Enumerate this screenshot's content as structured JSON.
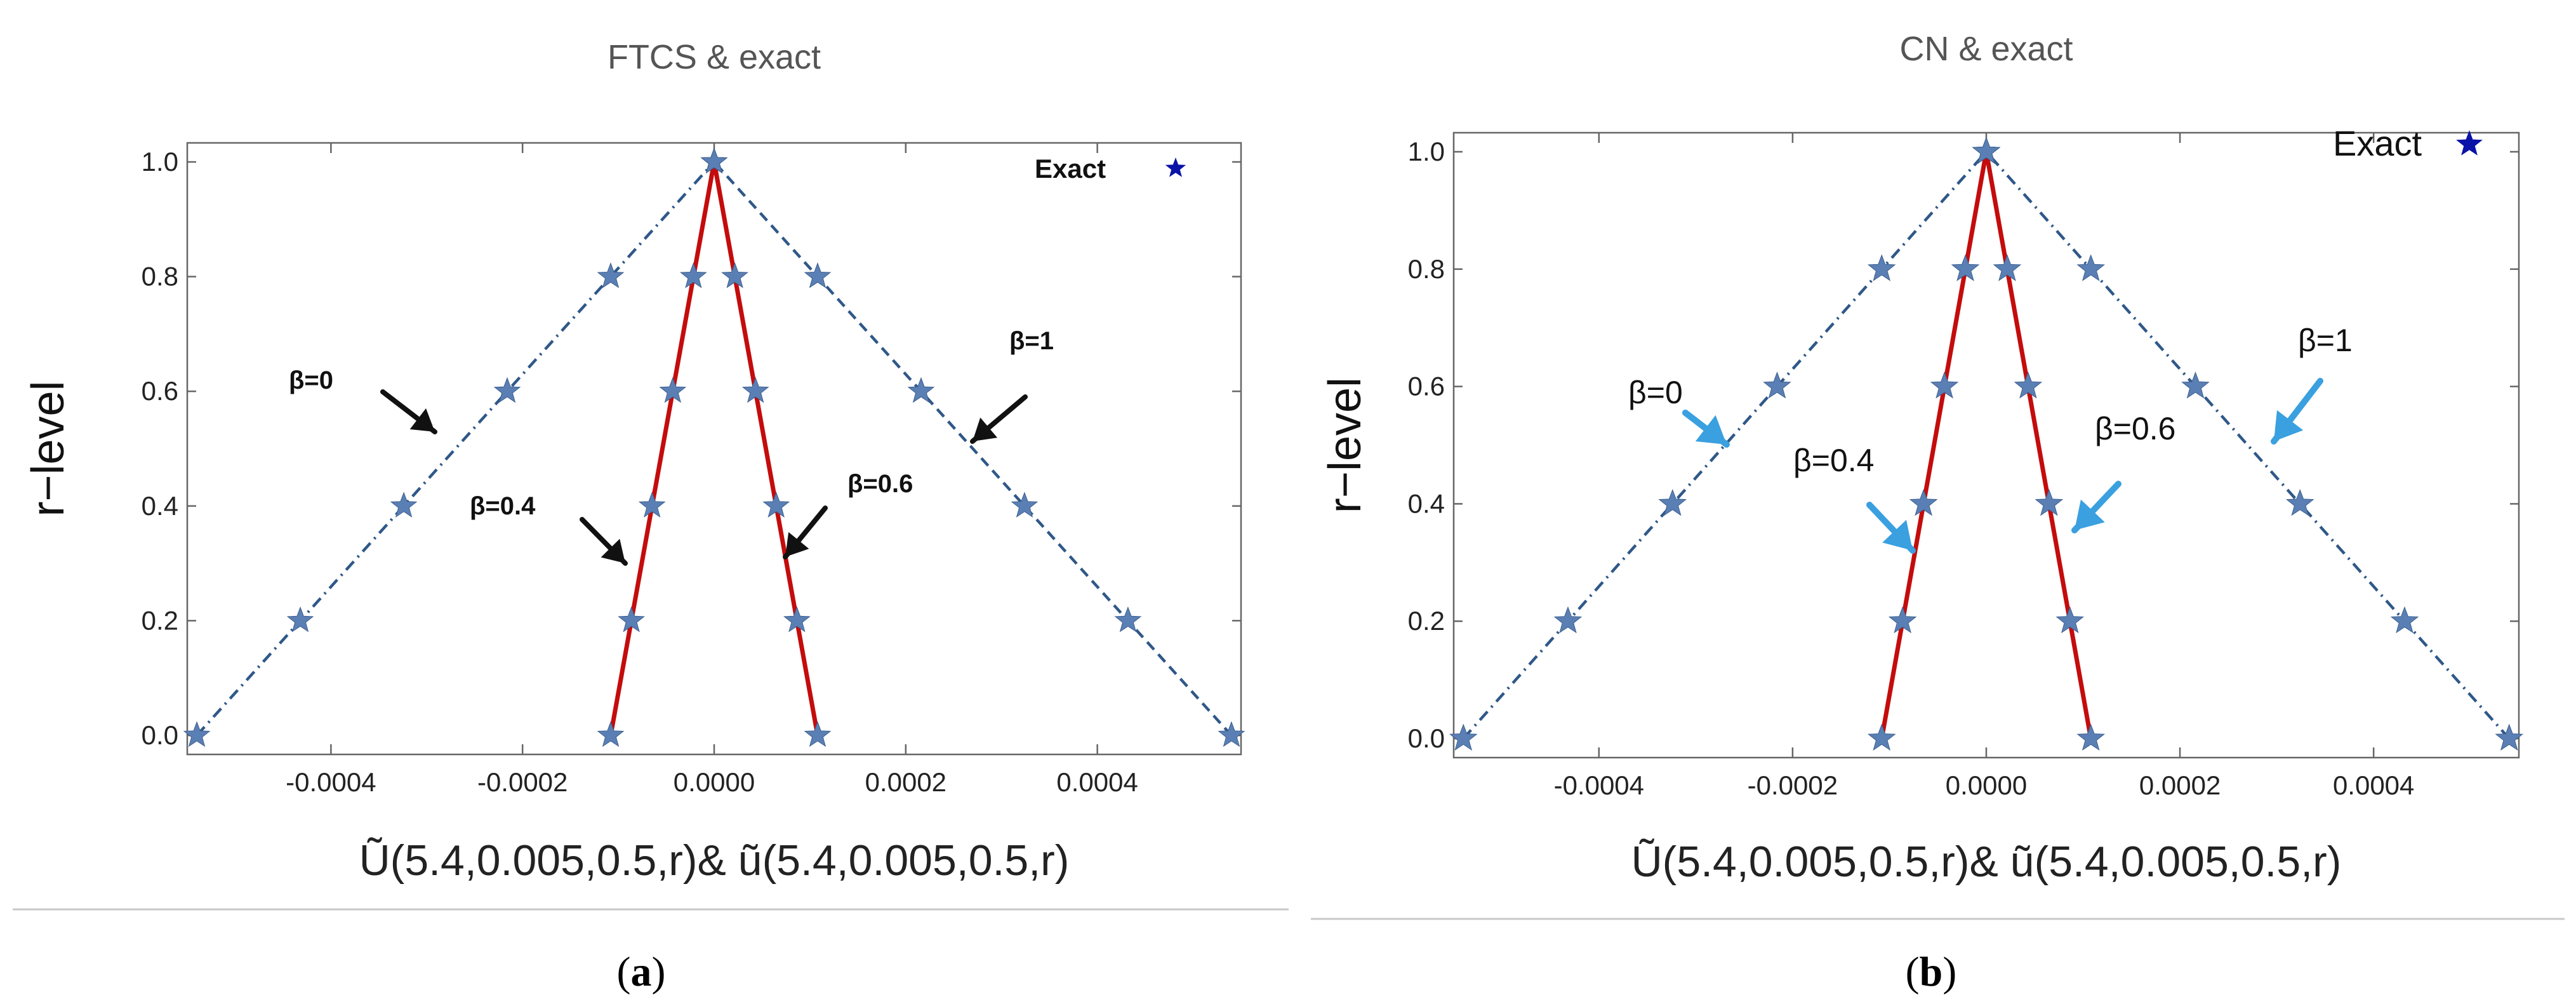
{
  "chart_data": [
    {
      "panel": "a",
      "type": "line",
      "title": "FTCS & exact",
      "ylabel": "r−level",
      "xlabel": "Ũ(5.4,0.005,0.5,r)& ũ(5.4,0.005,0.5,r)",
      "caption_letter": "a",
      "xlim": [
        -0.00055,
        0.00055
      ],
      "ylim": [
        0,
        1.0
      ],
      "xticks": [
        -0.0004,
        -0.0002,
        0.0,
        0.0002,
        0.0004
      ],
      "xtick_labels": [
        "-0.0004",
        "-0.0002",
        "0.0000",
        "0.0002",
        "0.0004"
      ],
      "yticks": [
        0.0,
        0.2,
        0.4,
        0.6,
        0.8,
        1.0
      ],
      "ytick_labels": [
        "0.0",
        "0.2",
        "0.4",
        "0.6",
        "0.8",
        "1.0"
      ],
      "legend": {
        "label": "Exact",
        "position": "top-right",
        "color": "#0a12a8"
      },
      "series": [
        {
          "name": "β=0",
          "style": "dashdot",
          "color": "#2f5888",
          "x": [
            -0.00054,
            -0.000432,
            -0.000324,
            -0.000216,
            -0.000108,
            0.0
          ],
          "y": [
            0.0,
            0.2,
            0.4,
            0.6,
            0.8,
            1.0
          ]
        },
        {
          "name": "β=1",
          "style": "dashed",
          "color": "#2f5888",
          "x": [
            0.00054,
            0.000432,
            0.000324,
            0.000216,
            0.000108,
            0.0
          ],
          "y": [
            0.0,
            0.2,
            0.4,
            0.6,
            0.8,
            1.0
          ]
        },
        {
          "name": "β=0.4",
          "style": "solid",
          "color": "#c40c0c",
          "x": [
            -0.000108,
            -8.64e-05,
            -6.48e-05,
            -4.32e-05,
            -2.16e-05,
            0.0
          ],
          "y": [
            0.0,
            0.2,
            0.4,
            0.6,
            0.8,
            1.0
          ]
        },
        {
          "name": "β=0.6",
          "style": "solid",
          "color": "#c40c0c",
          "x": [
            0.000108,
            8.64e-05,
            6.48e-05,
            4.32e-05,
            2.16e-05,
            0.0
          ],
          "y": [
            0.0,
            0.2,
            0.4,
            0.6,
            0.8,
            1.0
          ]
        }
      ],
      "exact_markers": {
        "marker": "star",
        "color": "#5a7fb4"
      },
      "annotations": [
        {
          "text": "β=0",
          "arrow_color": "#111111",
          "points_to": [
            -0.00028,
            0.48
          ]
        },
        {
          "text": "β=1",
          "arrow_color": "#111111",
          "points_to": [
            0.00028,
            0.46
          ]
        },
        {
          "text": "β=0.4",
          "arrow_color": "#111111",
          "points_to": [
            -8e-05,
            0.26
          ]
        },
        {
          "text": "β=0.6",
          "arrow_color": "#111111",
          "points_to": [
            8e-05,
            0.28
          ]
        }
      ]
    },
    {
      "panel": "b",
      "type": "line",
      "title": "CN & exact",
      "ylabel": "r−level",
      "xlabel": "Ũ(5.4,0.005,0.5,r)& ũ(5.4,0.005,0.5,r)",
      "caption_letter": "b",
      "xlim": [
        -0.00055,
        0.00055
      ],
      "ylim": [
        0,
        1.0
      ],
      "xticks": [
        -0.0004,
        -0.0002,
        0.0,
        0.0002,
        0.0004
      ],
      "xtick_labels": [
        "-0.0004",
        "-0.0002",
        "0.0000",
        "0.0002",
        "0.0004"
      ],
      "yticks": [
        0.0,
        0.2,
        0.4,
        0.6,
        0.8,
        1.0
      ],
      "ytick_labels": [
        "0.0",
        "0.2",
        "0.4",
        "0.6",
        "0.8",
        "1.0"
      ],
      "legend": {
        "label": "Exact",
        "position": "top-right",
        "color": "#0a12a8"
      },
      "series": [
        {
          "name": "β=0",
          "style": "dashdot",
          "color": "#2f5888",
          "x": [
            -0.00054,
            -0.000432,
            -0.000324,
            -0.000216,
            -0.000108,
            0.0
          ],
          "y": [
            0.0,
            0.2,
            0.4,
            0.6,
            0.8,
            1.0
          ]
        },
        {
          "name": "β=1",
          "style": "dashdot",
          "color": "#2f5888",
          "x": [
            0.00054,
            0.000432,
            0.000324,
            0.000216,
            0.000108,
            0.0
          ],
          "y": [
            0.0,
            0.2,
            0.4,
            0.6,
            0.8,
            1.0
          ]
        },
        {
          "name": "β=0.4",
          "style": "solid",
          "color": "#c40c0c",
          "x": [
            -0.000108,
            -8.64e-05,
            -6.48e-05,
            -4.32e-05,
            -2.16e-05,
            0.0
          ],
          "y": [
            0.0,
            0.2,
            0.4,
            0.6,
            0.8,
            1.0
          ]
        },
        {
          "name": "β=0.6",
          "style": "solid",
          "color": "#c40c0c",
          "x": [
            0.000108,
            8.64e-05,
            6.48e-05,
            4.32e-05,
            2.16e-05,
            0.0
          ],
          "y": [
            0.0,
            0.2,
            0.4,
            0.6,
            0.8,
            1.0
          ]
        }
      ],
      "exact_markers": {
        "marker": "star",
        "color": "#5a7fb4"
      },
      "annotations": [
        {
          "text": "β=0",
          "arrow_color": "#3aa0e0",
          "points_to": [
            -0.00028,
            0.48
          ]
        },
        {
          "text": "β=1",
          "arrow_color": "#3aa0e0",
          "points_to": [
            0.00028,
            0.48
          ]
        },
        {
          "text": "β=0.4",
          "arrow_color": "#3aa0e0",
          "points_to": [
            -8e-05,
            0.3
          ]
        },
        {
          "text": "β=0.6",
          "arrow_color": "#3aa0e0",
          "points_to": [
            8e-05,
            0.34
          ]
        }
      ]
    }
  ]
}
